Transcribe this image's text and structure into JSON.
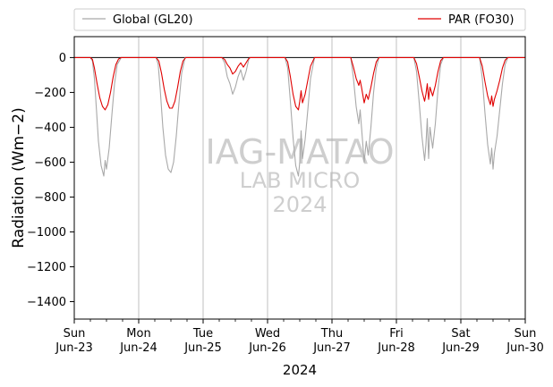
{
  "chart_data": {
    "type": "line",
    "xlabel": "2024",
    "ylabel": "Radiation (Wm−2)",
    "ylim": [
      -1500,
      120
    ],
    "xlim": [
      "2024-06-23 00:00",
      "2024-06-30 00:00"
    ],
    "y_ticks": [
      0,
      -200,
      -400,
      -600,
      -800,
      -1000,
      -1200,
      -1400
    ],
    "x_ticks": [
      {
        "date": "2024-06-23",
        "day": "Sun",
        "label": "Jun-23"
      },
      {
        "date": "2024-06-24",
        "day": "Mon",
        "label": "Jun-24"
      },
      {
        "date": "2024-06-25",
        "day": "Tue",
        "label": "Jun-25"
      },
      {
        "date": "2024-06-26",
        "day": "Wed",
        "label": "Jun-26"
      },
      {
        "date": "2024-06-27",
        "day": "Thu",
        "label": "Jun-27"
      },
      {
        "date": "2024-06-28",
        "day": "Fri",
        "label": "Jun-28"
      },
      {
        "date": "2024-06-29",
        "day": "Sat",
        "label": "Jun-29"
      },
      {
        "date": "2024-06-30",
        "day": "Sun",
        "label": "Jun-30"
      }
    ],
    "grid": "vertical at day ticks",
    "zero_line": true,
    "legend": {
      "placement": "top, above plot",
      "entries": [
        "Global (GL20)",
        "PAR (FO30)"
      ]
    },
    "watermark": [
      "IAG-MATAO",
      "LAB MICRO",
      "2024"
    ],
    "series": [
      {
        "name": "Global (GL20)",
        "color": "#a9a9a9",
        "points": [
          [
            "2024-06-23 00:00",
            0
          ],
          [
            "2024-06-23 06:00",
            0
          ],
          [
            "2024-06-23 06:45",
            -20
          ],
          [
            "2024-06-23 07:30",
            -120
          ],
          [
            "2024-06-23 08:15",
            -300
          ],
          [
            "2024-06-23 09:00",
            -480
          ],
          [
            "2024-06-23 10:00",
            -620
          ],
          [
            "2024-06-23 11:00",
            -680
          ],
          [
            "2024-06-23 11:30",
            -590
          ],
          [
            "2024-06-23 12:00",
            -640
          ],
          [
            "2024-06-23 13:00",
            -520
          ],
          [
            "2024-06-23 14:00",
            -330
          ],
          [
            "2024-06-23 15:00",
            -150
          ],
          [
            "2024-06-23 16:00",
            -40
          ],
          [
            "2024-06-23 17:30",
            0
          ],
          [
            "2024-06-24 06:30",
            0
          ],
          [
            "2024-06-24 07:15",
            -40
          ],
          [
            "2024-06-24 08:00",
            -180
          ],
          [
            "2024-06-24 09:00",
            -400
          ],
          [
            "2024-06-24 10:00",
            -560
          ],
          [
            "2024-06-24 11:00",
            -640
          ],
          [
            "2024-06-24 12:00",
            -660
          ],
          [
            "2024-06-24 13:00",
            -600
          ],
          [
            "2024-06-24 14:00",
            -450
          ],
          [
            "2024-06-24 15:00",
            -260
          ],
          [
            "2024-06-24 16:00",
            -90
          ],
          [
            "2024-06-24 17:15",
            0
          ],
          [
            "2024-06-25 07:00",
            0
          ],
          [
            "2024-06-25 08:00",
            -30
          ],
          [
            "2024-06-25 09:00",
            -110
          ],
          [
            "2024-06-25 10:00",
            -150
          ],
          [
            "2024-06-25 11:00",
            -210
          ],
          [
            "2024-06-25 12:00",
            -170
          ],
          [
            "2024-06-25 13:00",
            -110
          ],
          [
            "2024-06-25 14:00",
            -70
          ],
          [
            "2024-06-25 15:00",
            -130
          ],
          [
            "2024-06-25 16:00",
            -80
          ],
          [
            "2024-06-25 17:00",
            -10
          ],
          [
            "2024-06-25 17:30",
            0
          ],
          [
            "2024-06-26 06:30",
            0
          ],
          [
            "2024-06-26 07:30",
            -60
          ],
          [
            "2024-06-26 08:30",
            -250
          ],
          [
            "2024-06-26 09:30",
            -460
          ],
          [
            "2024-06-26 10:30",
            -620
          ],
          [
            "2024-06-26 11:30",
            -680
          ],
          [
            "2024-06-26 12:00",
            -600
          ],
          [
            "2024-06-26 12:30",
            -420
          ],
          [
            "2024-06-26 13:00",
            -580
          ],
          [
            "2024-06-26 14:00",
            -470
          ],
          [
            "2024-06-26 15:00",
            -300
          ],
          [
            "2024-06-26 16:00",
            -120
          ],
          [
            "2024-06-26 17:30",
            0
          ],
          [
            "2024-06-27 07:00",
            0
          ],
          [
            "2024-06-27 08:00",
            -120
          ],
          [
            "2024-06-27 09:00",
            -280
          ],
          [
            "2024-06-27 10:00",
            -380
          ],
          [
            "2024-06-27 10:30",
            -300
          ],
          [
            "2024-06-27 11:00",
            -400
          ],
          [
            "2024-06-27 12:00",
            -600
          ],
          [
            "2024-06-27 12:45",
            -480
          ],
          [
            "2024-06-27 13:30",
            -560
          ],
          [
            "2024-06-27 14:30",
            -400
          ],
          [
            "2024-06-27 15:30",
            -200
          ],
          [
            "2024-06-27 16:30",
            -60
          ],
          [
            "2024-06-27 17:30",
            0
          ],
          [
            "2024-06-28 06:30",
            0
          ],
          [
            "2024-06-28 07:30",
            -80
          ],
          [
            "2024-06-28 08:30",
            -260
          ],
          [
            "2024-06-28 09:30",
            -450
          ],
          [
            "2024-06-28 10:30",
            -590
          ],
          [
            "2024-06-28 11:00",
            -500
          ],
          [
            "2024-06-28 11:30",
            -350
          ],
          [
            "2024-06-28 12:00",
            -580
          ],
          [
            "2024-06-28 12:30",
            -400
          ],
          [
            "2024-06-28 13:30",
            -520
          ],
          [
            "2024-06-28 14:30",
            -380
          ],
          [
            "2024-06-28 15:30",
            -180
          ],
          [
            "2024-06-28 16:30",
            -40
          ],
          [
            "2024-06-28 17:30",
            0
          ],
          [
            "2024-06-29 07:00",
            0
          ],
          [
            "2024-06-29 08:00",
            -120
          ],
          [
            "2024-06-29 09:00",
            -320
          ],
          [
            "2024-06-29 10:00",
            -500
          ],
          [
            "2024-06-29 11:00",
            -610
          ],
          [
            "2024-06-29 11:30",
            -520
          ],
          [
            "2024-06-29 12:00",
            -640
          ],
          [
            "2024-06-29 12:30",
            -550
          ],
          [
            "2024-06-29 13:30",
            -450
          ],
          [
            "2024-06-29 14:30",
            -300
          ],
          [
            "2024-06-29 15:30",
            -150
          ],
          [
            "2024-06-29 16:30",
            -40
          ],
          [
            "2024-06-29 17:30",
            0
          ],
          [
            "2024-06-30 00:00",
            0
          ]
        ]
      },
      {
        "name": "PAR (FO30)",
        "color": "#e00000",
        "points": [
          [
            "2024-06-23 00:00",
            0
          ],
          [
            "2024-06-23 06:00",
            0
          ],
          [
            "2024-06-23 06:45",
            -10
          ],
          [
            "2024-06-23 07:30",
            -60
          ],
          [
            "2024-06-23 08:30",
            -150
          ],
          [
            "2024-06-23 09:30",
            -230
          ],
          [
            "2024-06-23 10:30",
            -280
          ],
          [
            "2024-06-23 11:30",
            -300
          ],
          [
            "2024-06-23 12:30",
            -270
          ],
          [
            "2024-06-23 13:30",
            -200
          ],
          [
            "2024-06-23 14:30",
            -110
          ],
          [
            "2024-06-23 15:30",
            -40
          ],
          [
            "2024-06-23 16:30",
            -8
          ],
          [
            "2024-06-23 17:30",
            0
          ],
          [
            "2024-06-24 06:30",
            0
          ],
          [
            "2024-06-24 07:30",
            -20
          ],
          [
            "2024-06-24 08:30",
            -90
          ],
          [
            "2024-06-24 09:30",
            -180
          ],
          [
            "2024-06-24 10:30",
            -250
          ],
          [
            "2024-06-24 11:30",
            -290
          ],
          [
            "2024-06-24 12:30",
            -290
          ],
          [
            "2024-06-24 13:30",
            -250
          ],
          [
            "2024-06-24 14:30",
            -170
          ],
          [
            "2024-06-24 15:30",
            -80
          ],
          [
            "2024-06-24 16:30",
            -20
          ],
          [
            "2024-06-24 17:30",
            0
          ],
          [
            "2024-06-25 07:00",
            0
          ],
          [
            "2024-06-25 08:00",
            -10
          ],
          [
            "2024-06-25 09:00",
            -40
          ],
          [
            "2024-06-25 10:00",
            -60
          ],
          [
            "2024-06-25 11:00",
            -95
          ],
          [
            "2024-06-25 12:00",
            -80
          ],
          [
            "2024-06-25 13:00",
            -50
          ],
          [
            "2024-06-25 14:00",
            -30
          ],
          [
            "2024-06-25 15:00",
            -55
          ],
          [
            "2024-06-25 16:00",
            -30
          ],
          [
            "2024-06-25 17:00",
            -5
          ],
          [
            "2024-06-25 17:30",
            0
          ],
          [
            "2024-06-26 06:30",
            0
          ],
          [
            "2024-06-26 07:30",
            -25
          ],
          [
            "2024-06-26 08:30",
            -110
          ],
          [
            "2024-06-26 09:30",
            -210
          ],
          [
            "2024-06-26 10:30",
            -280
          ],
          [
            "2024-06-26 11:30",
            -300
          ],
          [
            "2024-06-26 12:00",
            -250
          ],
          [
            "2024-06-26 12:30",
            -190
          ],
          [
            "2024-06-26 13:00",
            -260
          ],
          [
            "2024-06-26 14:00",
            -210
          ],
          [
            "2024-06-26 15:00",
            -130
          ],
          [
            "2024-06-26 16:00",
            -50
          ],
          [
            "2024-06-26 17:30",
            0
          ],
          [
            "2024-06-27 07:00",
            0
          ],
          [
            "2024-06-27 08:00",
            -55
          ],
          [
            "2024-06-27 09:00",
            -120
          ],
          [
            "2024-06-27 10:00",
            -160
          ],
          [
            "2024-06-27 10:30",
            -130
          ],
          [
            "2024-06-27 11:00",
            -170
          ],
          [
            "2024-06-27 12:00",
            -260
          ],
          [
            "2024-06-27 12:45",
            -210
          ],
          [
            "2024-06-27 13:30",
            -240
          ],
          [
            "2024-06-27 14:30",
            -170
          ],
          [
            "2024-06-27 15:30",
            -90
          ],
          [
            "2024-06-27 16:30",
            -25
          ],
          [
            "2024-06-27 17:30",
            0
          ],
          [
            "2024-06-28 06:30",
            0
          ],
          [
            "2024-06-28 07:30",
            -35
          ],
          [
            "2024-06-28 08:30",
            -110
          ],
          [
            "2024-06-28 09:30",
            -190
          ],
          [
            "2024-06-28 10:30",
            -250
          ],
          [
            "2024-06-28 11:00",
            -210
          ],
          [
            "2024-06-28 11:30",
            -150
          ],
          [
            "2024-06-28 12:00",
            -240
          ],
          [
            "2024-06-28 12:30",
            -170
          ],
          [
            "2024-06-28 13:30",
            -220
          ],
          [
            "2024-06-28 14:30",
            -160
          ],
          [
            "2024-06-28 15:30",
            -80
          ],
          [
            "2024-06-28 16:30",
            -18
          ],
          [
            "2024-06-28 17:30",
            0
          ],
          [
            "2024-06-29 07:00",
            0
          ],
          [
            "2024-06-29 08:00",
            -50
          ],
          [
            "2024-06-29 09:00",
            -140
          ],
          [
            "2024-06-29 10:00",
            -220
          ],
          [
            "2024-06-29 11:00",
            -270
          ],
          [
            "2024-06-29 11:30",
            -220
          ],
          [
            "2024-06-29 12:00",
            -280
          ],
          [
            "2024-06-29 12:30",
            -240
          ],
          [
            "2024-06-29 13:30",
            -190
          ],
          [
            "2024-06-29 14:30",
            -130
          ],
          [
            "2024-06-29 15:30",
            -60
          ],
          [
            "2024-06-29 16:30",
            -15
          ],
          [
            "2024-06-29 17:30",
            0
          ],
          [
            "2024-06-30 00:00",
            0
          ]
        ]
      }
    ]
  }
}
